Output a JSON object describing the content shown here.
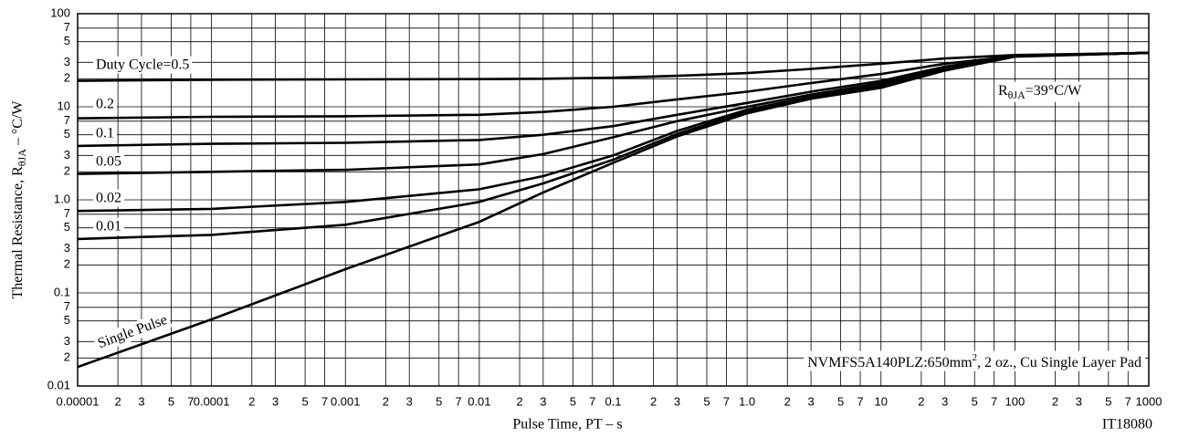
{
  "chart_data": {
    "type": "line",
    "xlabel": "Pulse Time, PT – s",
    "ylabel": {
      "text": "Thermal Resistance, R",
      "subscript": "θJA",
      "unit": " – °C/W"
    },
    "annotations": {
      "rthja": {
        "symbol": "R",
        "subscript": "θJA",
        "text": "=39°C/W"
      },
      "note": {
        "text": "NVMFS5A140PLZ:650mm",
        "sup": "2",
        "rest": ", 2 oz., Cu Single Layer Pad"
      },
      "id": "IT18080"
    },
    "xscale": "log",
    "yscale": "log",
    "grid": true,
    "xlim": [
      1e-05,
      1000
    ],
    "ylim": [
      0.01,
      100
    ],
    "xticks": [
      {
        "value": 1e-05,
        "label": "0.00001"
      },
      {
        "value": 2e-05,
        "label": "2"
      },
      {
        "value": 3e-05,
        "label": "3"
      },
      {
        "value": 5e-05,
        "label": "5"
      },
      {
        "value": 7e-05,
        "label": "7"
      },
      {
        "value": 0.0001,
        "label": "0.0001"
      },
      {
        "value": 0.0002,
        "label": "2"
      },
      {
        "value": 0.0003,
        "label": "3"
      },
      {
        "value": 0.0005,
        "label": "5"
      },
      {
        "value": 0.0007,
        "label": "7"
      },
      {
        "value": 0.001,
        "label": "0.001"
      },
      {
        "value": 0.002,
        "label": "2"
      },
      {
        "value": 0.003,
        "label": "3"
      },
      {
        "value": 0.005,
        "label": "5"
      },
      {
        "value": 0.007,
        "label": "7"
      },
      0.01,
      {
        "value": 0.02,
        "label": "2"
      },
      {
        "value": 0.03,
        "label": "3"
      },
      {
        "value": 0.05,
        "label": "5"
      },
      {
        "value": 0.07,
        "label": "7"
      },
      0.1,
      {
        "value": 0.2,
        "label": "2"
      },
      {
        "value": 0.3,
        "label": "3"
      },
      {
        "value": 0.5,
        "label": "5"
      },
      {
        "value": 0.7,
        "label": "7"
      },
      {
        "value": 1,
        "label": "1.0"
      },
      {
        "value": 2,
        "label": "2"
      },
      {
        "value": 3,
        "label": "3"
      },
      {
        "value": 5,
        "label": "5"
      },
      {
        "value": 7,
        "label": "7"
      },
      10,
      {
        "value": 20,
        "label": "2"
      },
      {
        "value": 30,
        "label": "3"
      },
      {
        "value": 50,
        "label": "5"
      },
      {
        "value": 70,
        "label": "7"
      },
      100,
      {
        "value": 200,
        "label": "2"
      },
      {
        "value": 300,
        "label": "3"
      },
      {
        "value": 500,
        "label": "5"
      },
      {
        "value": 700,
        "label": "7"
      },
      1000
    ],
    "yticks": [
      0.01,
      {
        "value": 0.02,
        "label": "2"
      },
      {
        "value": 0.03,
        "label": "3"
      },
      {
        "value": 0.05,
        "label": "5"
      },
      {
        "value": 0.07,
        "label": "7"
      },
      0.1,
      {
        "value": 0.2,
        "label": "2"
      },
      {
        "value": 0.3,
        "label": "3"
      },
      {
        "value": 0.5,
        "label": "5"
      },
      {
        "value": 0.7,
        "label": "7"
      },
      {
        "value": 1,
        "label": "1.0"
      },
      {
        "value": 2,
        "label": "2"
      },
      {
        "value": 3,
        "label": "3"
      },
      {
        "value": 5,
        "label": "5"
      },
      {
        "value": 7,
        "label": "7"
      },
      10,
      {
        "value": 20,
        "label": "2"
      },
      {
        "value": 30,
        "label": "3"
      },
      {
        "value": 50,
        "label": "5"
      },
      {
        "value": 70,
        "label": "7"
      },
      100
    ],
    "x": [
      1e-05,
      0.0001,
      0.001,
      0.01,
      0.03,
      0.1,
      0.3,
      1,
      3,
      10,
      30,
      100,
      1000
    ],
    "series": [
      {
        "name": "Duty Cycle=0.5",
        "color": "#000000",
        "values": [
          19,
          19.5,
          19.7,
          19.8,
          20,
          20.5,
          21.5,
          23,
          25.5,
          29,
          33,
          36,
          38
        ]
      },
      {
        "name": "0.2",
        "color": "#000000",
        "values": [
          7.5,
          7.8,
          7.9,
          8.2,
          8.8,
          10,
          12,
          14.5,
          18,
          22.5,
          29,
          35,
          38
        ]
      },
      {
        "name": "0.1",
        "color": "#000000",
        "values": [
          3.8,
          4,
          4.1,
          4.4,
          5,
          6.2,
          8.2,
          11,
          14.5,
          19,
          27,
          35,
          38
        ]
      },
      {
        "name": "0.05",
        "color": "#000000",
        "values": [
          1.9,
          2,
          2.1,
          2.4,
          3.1,
          4.7,
          7,
          10,
          13.5,
          18,
          26,
          35,
          38
        ]
      },
      {
        "name": "0.02",
        "color": "#000000",
        "values": [
          0.76,
          0.8,
          0.95,
          1.3,
          1.8,
          3,
          5.5,
          9.3,
          12.8,
          17,
          25.5,
          35,
          38
        ]
      },
      {
        "name": "0.01",
        "color": "#000000",
        "values": [
          0.38,
          0.42,
          0.54,
          0.95,
          1.5,
          2.7,
          5.1,
          8.9,
          12.5,
          16.5,
          25,
          35,
          38
        ]
      },
      {
        "name": "Single Pulse",
        "color": "#000000",
        "values": [
          0.016,
          0.052,
          0.18,
          0.58,
          1.2,
          2.5,
          4.8,
          8.5,
          12.2,
          16,
          24.5,
          34.5,
          38
        ]
      }
    ]
  }
}
